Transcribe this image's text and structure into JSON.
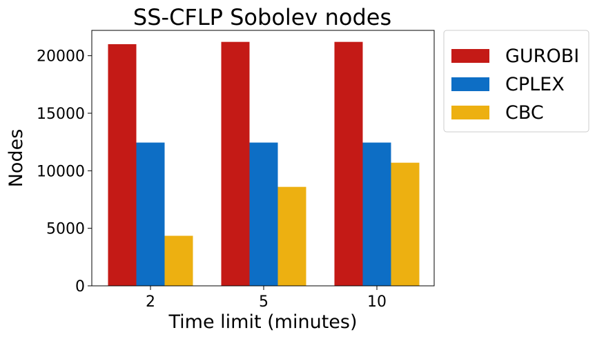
{
  "chart_data": {
    "type": "bar",
    "title": "SS-CFLP Sobolev nodes",
    "xlabel": "Time limit (minutes)",
    "ylabel": "Nodes",
    "categories": [
      "2",
      "5",
      "10"
    ],
    "series": [
      {
        "name": "GUROBI",
        "color": "#c41a16",
        "values": [
          21000,
          21200,
          21200
        ]
      },
      {
        "name": "CPLEX",
        "color": "#0d6ec5",
        "values": [
          12450,
          12450,
          12450
        ]
      },
      {
        "name": "CBC",
        "color": "#edb011",
        "values": [
          4350,
          8600,
          10700
        ]
      }
    ],
    "ylim": [
      0,
      22200
    ],
    "yticks": [
      0,
      5000,
      10000,
      15000,
      20000
    ],
    "grid": false,
    "legend": "outside upper right"
  }
}
